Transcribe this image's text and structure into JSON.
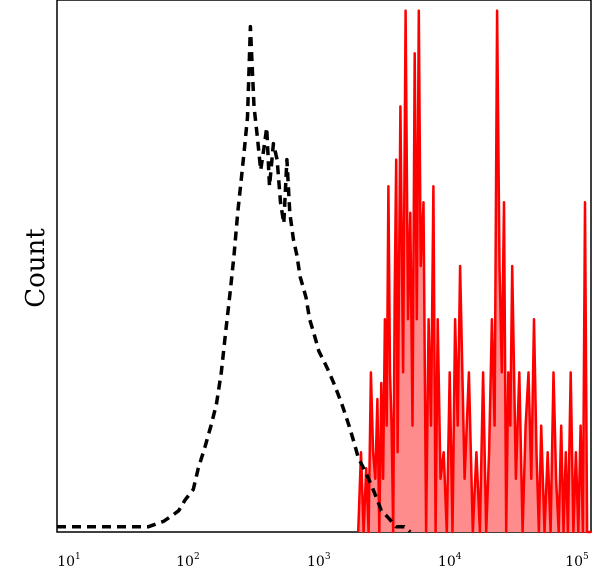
{
  "chart_data": {
    "type": "area",
    "title": "",
    "xlabel": "",
    "ylabel": "Count",
    "x_scale": "log",
    "xlim": [
      10,
      120000
    ],
    "ylim": [
      0,
      100
    ],
    "grid": false,
    "legend": "none",
    "x_ticks": [
      {
        "base": "10",
        "exp": "1",
        "value": 10
      },
      {
        "base": "10",
        "exp": "2",
        "value": 100
      },
      {
        "base": "10",
        "exp": "3",
        "value": 1000
      },
      {
        "base": "10",
        "exp": "4",
        "value": 10000
      },
      {
        "base": "10",
        "exp": "5",
        "value": 100000
      }
    ],
    "series": [
      {
        "style": "dashed",
        "color": "#000000",
        "x": [
          10,
          30,
          50,
          65,
          75,
          85,
          95,
          110,
          120,
          135,
          150,
          165,
          180,
          195,
          210,
          225,
          240,
          255,
          270,
          285,
          300,
          320,
          340,
          360,
          380,
          400,
          420,
          450,
          480,
          510,
          540,
          570,
          600,
          640,
          680,
          720,
          760,
          800,
          850,
          900,
          950,
          1000,
          1100,
          1200,
          1300,
          1400,
          1500,
          1600,
          1700,
          1800,
          1900,
          2000,
          2200,
          2400,
          2600,
          2800,
          3000,
          3300,
          3600,
          3900,
          4200,
          4500,
          5000
        ],
        "values": [
          1,
          1,
          1,
          2,
          3,
          4,
          6,
          8,
          12,
          16,
          20,
          24,
          30,
          38,
          45,
          52,
          60,
          66,
          72,
          78,
          95,
          80,
          74,
          68,
          72,
          76,
          65,
          73,
          70,
          62,
          58,
          70,
          60,
          55,
          52,
          48,
          46,
          44,
          40,
          38,
          36,
          34,
          32,
          30,
          28,
          26,
          24,
          22,
          20,
          18,
          16,
          14,
          12,
          10,
          8,
          6,
          4,
          3,
          2,
          1,
          1,
          1,
          0
        ]
      },
      {
        "style": "filled",
        "color": "#ff0000",
        "fill": "#ff8c8c",
        "x": [
          2000,
          2100,
          2200,
          2300,
          2400,
          2500,
          2600,
          2700,
          2800,
          2900,
          3000,
          3100,
          3200,
          3300,
          3400,
          3500,
          3600,
          3700,
          3800,
          3900,
          4000,
          4200,
          4400,
          4600,
          4800,
          5000,
          5200,
          5400,
          5600,
          5800,
          6000,
          6300,
          6600,
          6900,
          7200,
          7500,
          7800,
          8100,
          8500,
          9000,
          9500,
          10000,
          10500,
          11000,
          11500,
          12000,
          13000,
          14000,
          15000,
          16000,
          17000,
          18000,
          19000,
          20000,
          21000,
          22000,
          23000,
          24000,
          25000,
          26000,
          27000,
          28000,
          29000,
          30000,
          32000,
          34000,
          36000,
          38000,
          40000,
          42000,
          44000,
          46000,
          48000,
          50000,
          53000,
          56000,
          59000,
          62000,
          65000,
          68000,
          71000,
          74000,
          77000,
          80000,
          84000,
          88000,
          92000,
          96000,
          100000,
          104000,
          108000,
          112000,
          116000,
          120000
        ],
        "values": [
          0,
          15,
          0,
          12,
          0,
          30,
          15,
          10,
          25,
          0,
          28,
          10,
          40,
          20,
          65,
          30,
          20,
          0,
          45,
          70,
          15,
          80,
          30,
          98,
          40,
          60,
          20,
          90,
          40,
          98,
          50,
          62,
          0,
          40,
          20,
          65,
          0,
          40,
          10,
          15,
          0,
          30,
          0,
          40,
          20,
          50,
          10,
          30,
          0,
          15,
          0,
          30,
          0,
          15,
          40,
          20,
          98,
          50,
          30,
          62,
          0,
          30,
          20,
          50,
          10,
          30,
          0,
          20,
          30,
          10,
          40,
          15,
          0,
          20,
          0,
          15,
          0,
          30,
          10,
          0,
          20,
          0,
          15,
          0,
          30,
          0,
          15,
          0,
          20,
          0,
          62,
          0,
          0,
          0
        ]
      }
    ]
  }
}
